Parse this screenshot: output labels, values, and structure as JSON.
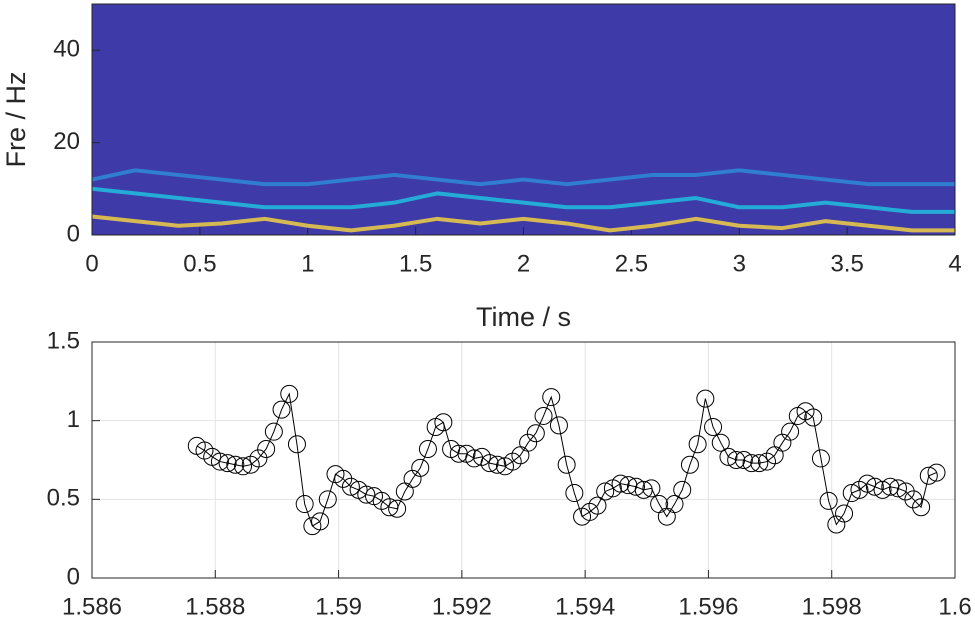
{
  "chart_data": [
    {
      "type": "spectrogram",
      "xlabel": "Time / s",
      "ylabel": "Fre / Hz",
      "background_color": "#3e3aa7",
      "xlim": [
        0,
        4
      ],
      "ylim": [
        0,
        50
      ],
      "xticks": [
        0,
        0.5,
        1,
        1.5,
        2,
        2.5,
        3,
        3.5,
        4
      ],
      "yticks": [
        0,
        20,
        40
      ],
      "series": [
        {
          "color": "#e8c84a",
          "x": [
            0,
            0.2,
            0.4,
            0.6,
            0.8,
            1.0,
            1.2,
            1.4,
            1.6,
            1.8,
            2.0,
            2.2,
            2.4,
            2.6,
            2.8,
            3.0,
            3.2,
            3.4,
            3.6,
            3.8,
            4.0
          ],
          "values": [
            4,
            3,
            2,
            2.5,
            3.5,
            2,
            1,
            2,
            3.5,
            2.5,
            3.5,
            2.5,
            1,
            2,
            3.5,
            2,
            1.5,
            3,
            2,
            1,
            1
          ]
        },
        {
          "color": "#22b8de",
          "x": [
            0,
            0.2,
            0.4,
            0.6,
            0.8,
            1.0,
            1.2,
            1.4,
            1.6,
            1.8,
            2.0,
            2.2,
            2.4,
            2.6,
            2.8,
            3.0,
            3.2,
            3.4,
            3.6,
            3.8,
            4.0
          ],
          "values": [
            10,
            9,
            8,
            7,
            6,
            6,
            6,
            7,
            9,
            8,
            7,
            6,
            6,
            7,
            8,
            6,
            6,
            7,
            6,
            5,
            5
          ]
        },
        {
          "color": "#2f86d6",
          "x": [
            0,
            0.2,
            0.4,
            0.6,
            0.8,
            1.0,
            1.2,
            1.4,
            1.6,
            1.8,
            2.0,
            2.2,
            2.4,
            2.6,
            2.8,
            3.0,
            3.2,
            3.4,
            3.6,
            3.8,
            4.0
          ],
          "values": [
            12,
            14,
            13,
            12,
            11,
            11,
            12,
            13,
            12,
            11,
            12,
            11,
            12,
            13,
            13,
            14,
            13,
            12,
            11,
            11,
            11
          ]
        }
      ]
    },
    {
      "type": "line",
      "grid": true,
      "marker": "circle",
      "xlim": [
        1.586,
        1.6
      ],
      "ylim": [
        0,
        1.5
      ],
      "xticks": [
        1.586,
        1.588,
        1.59,
        1.592,
        1.594,
        1.596,
        1.598,
        1.6
      ],
      "yticks": [
        0,
        0.5,
        1,
        1.5
      ],
      "series": [
        {
          "color": "#000000",
          "x": [
            1.5877,
            1.587825,
            1.58795,
            1.588075,
            1.5882,
            1.588325,
            1.58845,
            1.588575,
            1.5887,
            1.588825,
            1.58895,
            1.589075,
            1.5892,
            1.589325,
            1.58945,
            1.589575,
            1.5897,
            1.589825,
            1.58995,
            1.590075,
            1.5902,
            1.590325,
            1.59045,
            1.590575,
            1.5907,
            1.590825,
            1.59095,
            1.591075,
            1.5912,
            1.591325,
            1.59145,
            1.591575,
            1.5917,
            1.591825,
            1.59195,
            1.592075,
            1.5922,
            1.592325,
            1.59245,
            1.592575,
            1.5927,
            1.592825,
            1.59295,
            1.593075,
            1.5932,
            1.593325,
            1.59345,
            1.593575,
            1.5937,
            1.593825,
            1.59395,
            1.594075,
            1.5942,
            1.594325,
            1.59445,
            1.594575,
            1.5947,
            1.594825,
            1.59495,
            1.595075,
            1.5952,
            1.595325,
            1.59545,
            1.595575,
            1.5957,
            1.595825,
            1.59595,
            1.596075,
            1.5962,
            1.596325,
            1.59645,
            1.596575,
            1.5967,
            1.596825,
            1.59695,
            1.597075,
            1.5972,
            1.597325,
            1.59745,
            1.597575,
            1.5977,
            1.597825,
            1.59795,
            1.598075,
            1.5982,
            1.598325,
            1.59845,
            1.598575,
            1.5987,
            1.598825,
            1.59895,
            1.599075,
            1.5992,
            1.599325,
            1.59945,
            1.599575,
            1.5997
          ],
          "values": [
            0.84,
            0.81,
            0.77,
            0.74,
            0.73,
            0.72,
            0.71,
            0.72,
            0.76,
            0.82,
            0.93,
            1.07,
            1.17,
            0.85,
            0.47,
            0.33,
            0.36,
            0.5,
            0.66,
            0.63,
            0.58,
            0.56,
            0.53,
            0.52,
            0.49,
            0.45,
            0.44,
            0.55,
            0.63,
            0.7,
            0.82,
            0.96,
            0.99,
            0.82,
            0.79,
            0.79,
            0.76,
            0.77,
            0.73,
            0.72,
            0.71,
            0.74,
            0.78,
            0.86,
            0.92,
            1.03,
            1.15,
            0.97,
            0.72,
            0.54,
            0.39,
            0.42,
            0.46,
            0.55,
            0.57,
            0.6,
            0.59,
            0.58,
            0.56,
            0.57,
            0.47,
            0.39,
            0.47,
            0.56,
            0.72,
            0.85,
            1.14,
            0.96,
            0.86,
            0.77,
            0.75,
            0.75,
            0.73,
            0.73,
            0.74,
            0.78,
            0.86,
            0.93,
            1.03,
            1.06,
            1.02,
            0.76,
            0.49,
            0.34,
            0.41,
            0.54,
            0.56,
            0.6,
            0.58,
            0.56,
            0.58,
            0.57,
            0.55,
            0.5,
            0.45,
            0.65,
            0.67
          ]
        }
      ]
    }
  ]
}
